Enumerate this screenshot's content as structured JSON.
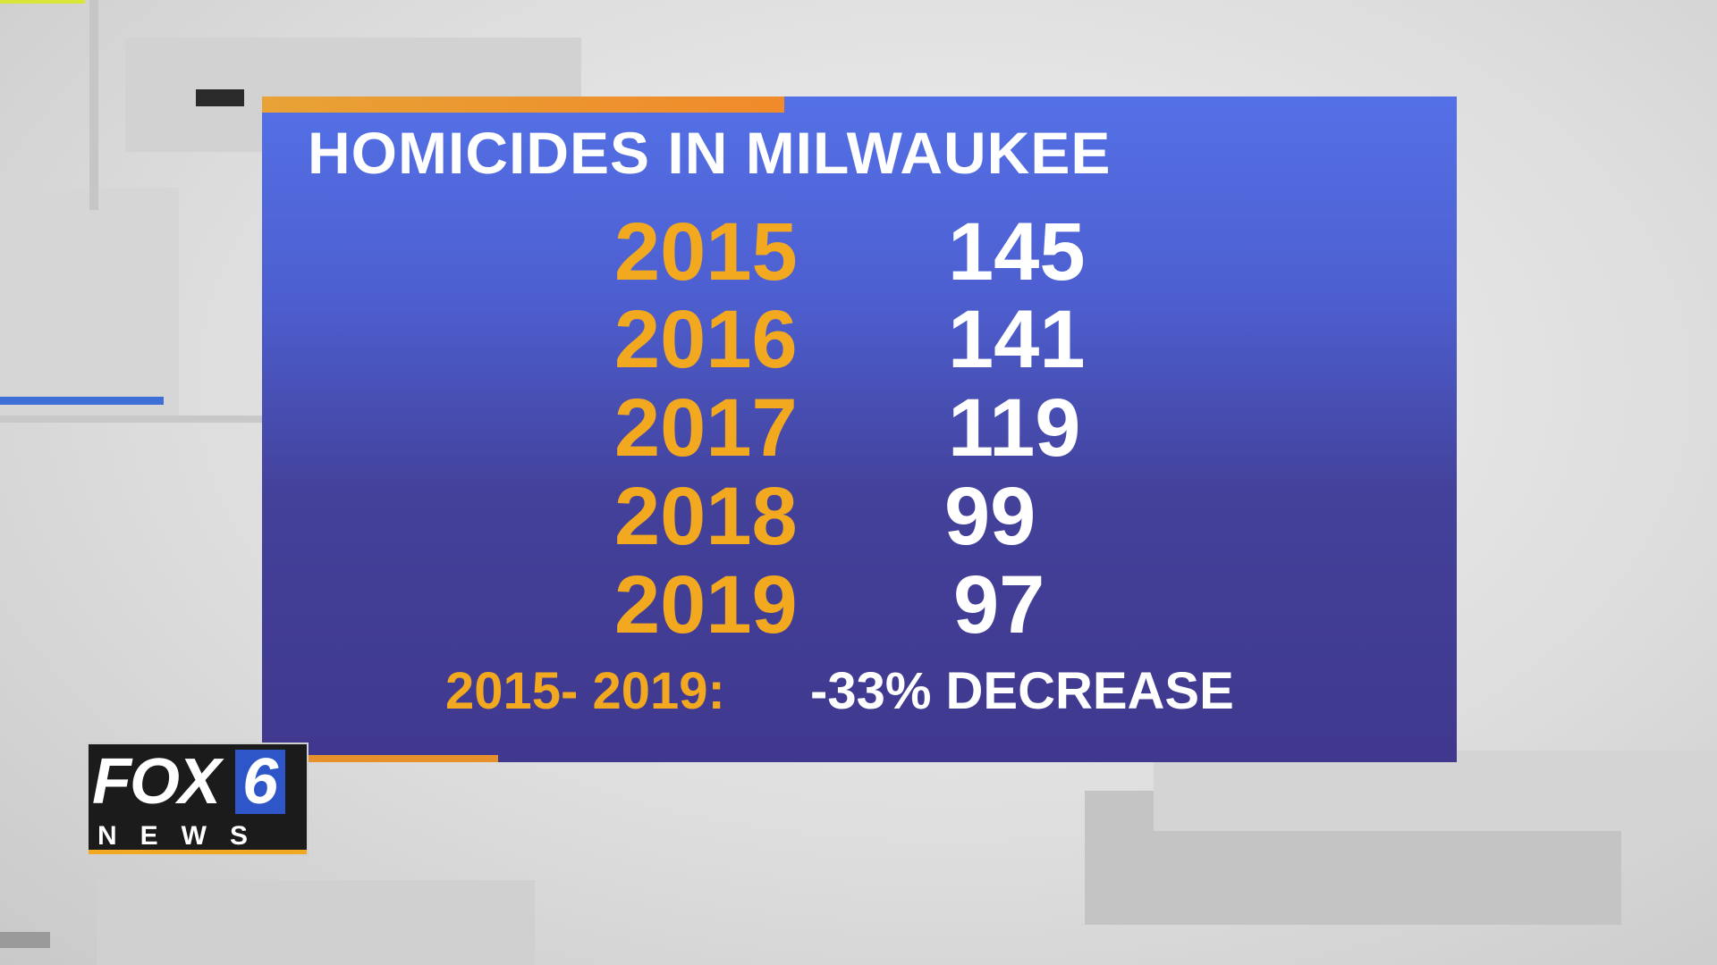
{
  "title": "HOMICIDES IN MILWAUKEE",
  "rows": [
    [
      2015,
      145
    ],
    [
      2016,
      141
    ],
    [
      2017,
      119
    ],
    [
      2018,
      99
    ],
    [
      2019,
      97
    ]
  ],
  "summary": {
    "range": "2015- 2019:",
    "change": "-33% DECREASE"
  },
  "logo": {
    "brand": "FOX",
    "channel": "6",
    "sub": "NEWS"
  }
}
